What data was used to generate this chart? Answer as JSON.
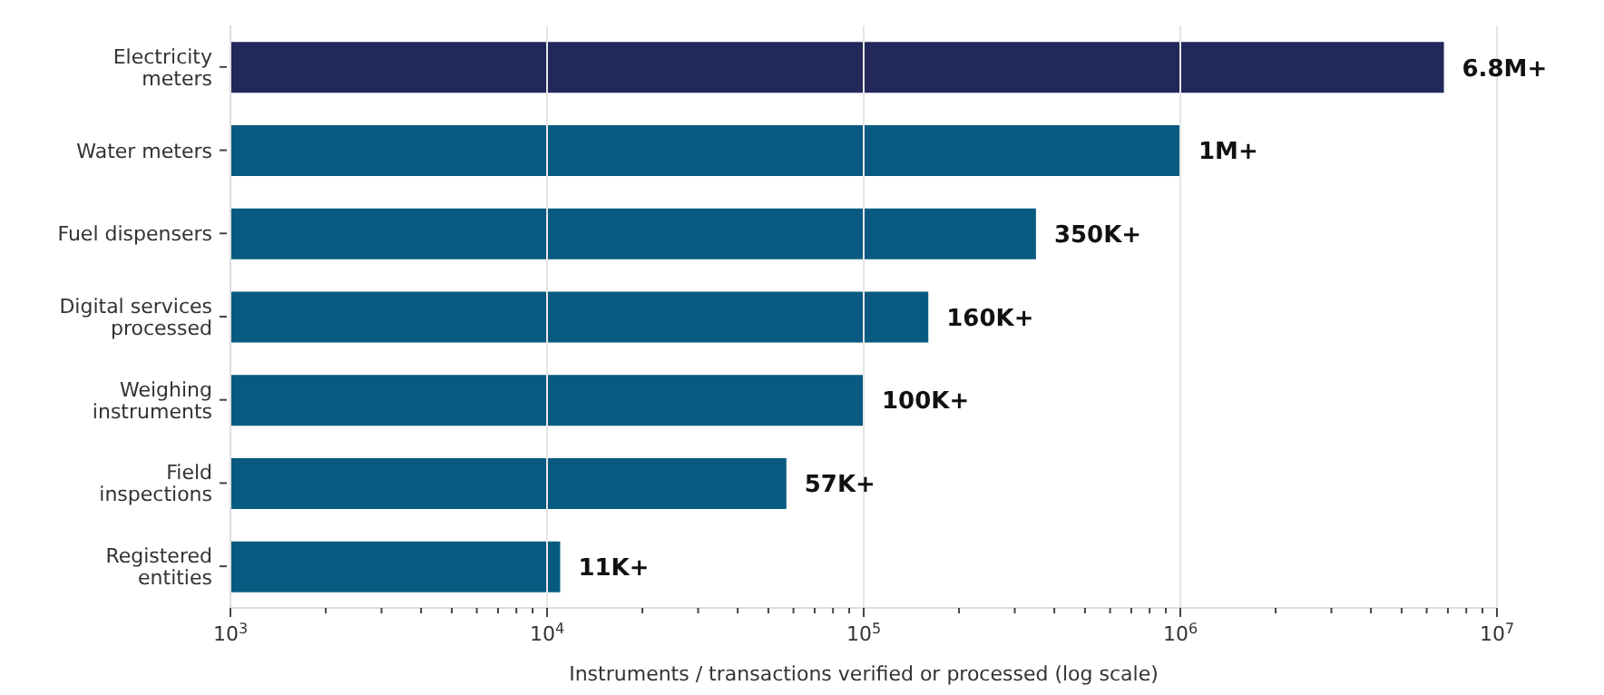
{
  "chart_data": {
    "type": "bar",
    "orientation": "horizontal",
    "log": "x",
    "xlabel": "Instruments / transactions verified or processed (log scale)",
    "categories": [
      "Electricity meters",
      "Water meters",
      "Fuel dispensers",
      "Digital services processed",
      "Weighing instruments",
      "Field inspections",
      "Registered entities"
    ],
    "values": [
      6800000,
      1000000,
      350000,
      160000,
      100000,
      57000,
      11000
    ],
    "colors": [
      "#22285a",
      "#085a80",
      "#085a80",
      "#085a80",
      "#085a80",
      "#085a80",
      "#085a80"
    ],
    "value_labels": [
      "6.8M+",
      "1M+",
      "350K+",
      "160K+",
      "100K+",
      "57K+",
      "11K+"
    ],
    "xlim": [
      1000,
      10000000
    ],
    "xticks": [
      {
        "value": 1000,
        "label": "10$^{3}$"
      },
      {
        "value": 2000,
        "label": null
      },
      {
        "value": 3000,
        "label": null
      },
      {
        "value": 4000,
        "label": null
      },
      {
        "value": 5000,
        "label": null
      },
      {
        "value": 6000,
        "label": null
      },
      {
        "value": 7000,
        "label": null
      },
      {
        "value": 8000,
        "label": null
      },
      {
        "value": 9000,
        "label": null
      },
      {
        "value": 10000,
        "label": "10$^{4}$"
      },
      {
        "value": 20000,
        "label": null
      },
      {
        "value": 30000,
        "label": null
      },
      {
        "value": 40000,
        "label": null
      },
      {
        "value": 50000,
        "label": null
      },
      {
        "value": 60000,
        "label": null
      },
      {
        "value": 70000,
        "label": null
      },
      {
        "value": 80000,
        "label": null
      },
      {
        "value": 90000,
        "label": null
      },
      {
        "value": 100000,
        "label": "10$^{5}$"
      },
      {
        "value": 200000,
        "label": null
      },
      {
        "value": 300000,
        "label": null
      },
      {
        "value": 400000,
        "label": null
      },
      {
        "value": 500000,
        "label": null
      },
      {
        "value": 600000,
        "label": null
      },
      {
        "value": 700000,
        "label": null
      },
      {
        "value": 800000,
        "label": null
      },
      {
        "value": 900000,
        "label": null
      },
      {
        "value": 1000000,
        "label": "10$^{6}$"
      },
      {
        "value": 2000000,
        "label": null
      },
      {
        "value": 3000000,
        "label": null
      },
      {
        "value": 4000000,
        "label": null
      },
      {
        "value": 5000000,
        "label": null
      },
      {
        "value": 6000000,
        "label": null
      },
      {
        "value": 7000000,
        "label": null
      },
      {
        "value": 8000000,
        "label": null
      },
      {
        "value": 9000000,
        "label": null
      },
      {
        "value": 10000000,
        "label": "10$^{7}$"
      }
    ],
    "grid": "x",
    "legend": false
  }
}
